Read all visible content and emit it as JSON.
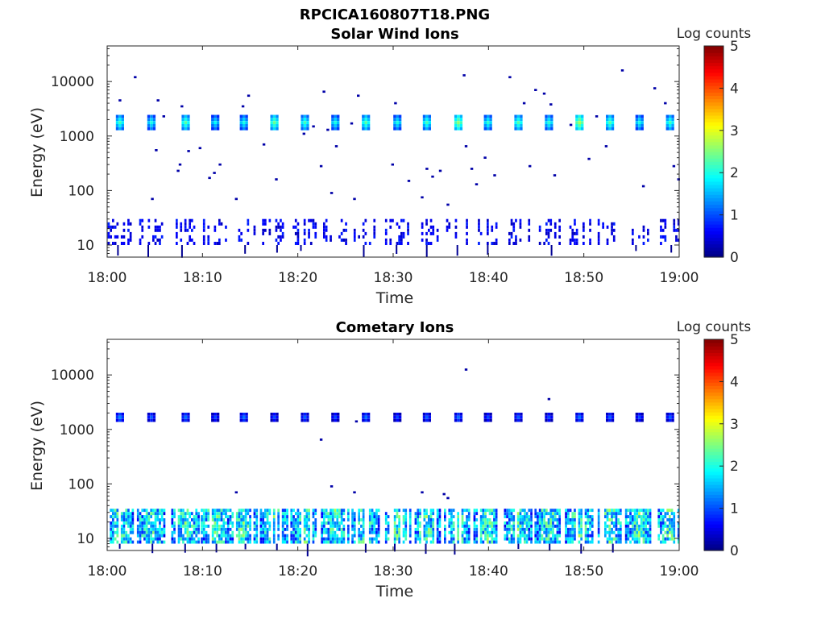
{
  "figure": {
    "title": "RPCICA160807T18.PNG"
  },
  "colormap": {
    "name": "jet",
    "stops": [
      "#00007f",
      "#0000ff",
      "#007fff",
      "#00ffff",
      "#7fff7f",
      "#ffff00",
      "#ff7f00",
      "#ff0000",
      "#7f0000"
    ]
  },
  "chart_data": [
    {
      "type": "heatmap",
      "title": "Solar Wind Ions",
      "xlabel": "Time",
      "ylabel": "Energy (eV)",
      "x_ticks": [
        "18:00",
        "18:10",
        "18:20",
        "18:30",
        "18:40",
        "18:50",
        "19:00"
      ],
      "x_range_minutes": [
        0,
        60
      ],
      "y_scale": "log",
      "y_ticks": [
        {
          "value": 10,
          "label": "10"
        },
        {
          "value": 100,
          "label": "100"
        },
        {
          "value": 1000,
          "label": "1000"
        },
        {
          "value": 10000,
          "label": "10000"
        }
      ],
      "y_range": [
        6,
        45000
      ],
      "colorbar": {
        "label": "Log counts",
        "range": [
          0,
          5
        ],
        "ticks": [
          "0",
          "1",
          "2",
          "3",
          "4",
          "5"
        ]
      },
      "pulse_times_min": [
        1.2,
        4.5,
        8.1,
        11.2,
        14.2,
        17.4,
        20.6,
        23.8,
        27.0,
        30.3,
        33.4,
        36.7,
        39.8,
        43.0,
        46.2,
        49.4,
        52.6,
        55.7,
        58.9
      ],
      "cells_ion_peak": [
        {
          "t_min": 1.2,
          "energy_ev": 1800,
          "log_counts": 2.2
        },
        {
          "t_min": 4.5,
          "energy_ev": 1800,
          "log_counts": 2.0
        },
        {
          "t_min": 8.1,
          "energy_ev": 1800,
          "log_counts": 2.3
        },
        {
          "t_min": 11.2,
          "energy_ev": 1800,
          "log_counts": 1.9
        },
        {
          "t_min": 14.2,
          "energy_ev": 1800,
          "log_counts": 2.0
        },
        {
          "t_min": 17.4,
          "energy_ev": 1800,
          "log_counts": 2.4
        },
        {
          "t_min": 20.6,
          "energy_ev": 1800,
          "log_counts": 2.2
        },
        {
          "t_min": 23.8,
          "energy_ev": 1800,
          "log_counts": 2.0
        },
        {
          "t_min": 27.0,
          "energy_ev": 1800,
          "log_counts": 2.3
        },
        {
          "t_min": 30.3,
          "energy_ev": 1800,
          "log_counts": 2.0
        },
        {
          "t_min": 33.4,
          "energy_ev": 1800,
          "log_counts": 2.2
        },
        {
          "t_min": 36.7,
          "energy_ev": 1800,
          "log_counts": 2.6
        },
        {
          "t_min": 39.8,
          "energy_ev": 1800,
          "log_counts": 2.1
        },
        {
          "t_min": 43.0,
          "energy_ev": 1800,
          "log_counts": 2.3
        },
        {
          "t_min": 46.2,
          "energy_ev": 1800,
          "log_counts": 2.1
        },
        {
          "t_min": 49.4,
          "energy_ev": 1800,
          "log_counts": 2.7
        },
        {
          "t_min": 52.6,
          "energy_ev": 1800,
          "log_counts": 2.3
        },
        {
          "t_min": 55.7,
          "energy_ev": 1800,
          "log_counts": 2.0
        },
        {
          "t_min": 58.9,
          "energy_ev": 1800,
          "log_counts": 2.2
        }
      ],
      "scatter_points": [
        {
          "t_min": 1.2,
          "energy_ev": 4500
        },
        {
          "t_min": 2.8,
          "energy_ev": 12000
        },
        {
          "t_min": 4.6,
          "energy_ev": 70
        },
        {
          "t_min": 5.2,
          "energy_ev": 4500
        },
        {
          "t_min": 5.0,
          "energy_ev": 550
        },
        {
          "t_min": 5.8,
          "energy_ev": 2300
        },
        {
          "t_min": 7.3,
          "energy_ev": 230
        },
        {
          "t_min": 7.5,
          "energy_ev": 300
        },
        {
          "t_min": 7.7,
          "energy_ev": 3500
        },
        {
          "t_min": 8.4,
          "energy_ev": 530
        },
        {
          "t_min": 9.6,
          "energy_ev": 600
        },
        {
          "t_min": 10.6,
          "energy_ev": 170
        },
        {
          "t_min": 11.1,
          "energy_ev": 210
        },
        {
          "t_min": 11.7,
          "energy_ev": 300
        },
        {
          "t_min": 13.4,
          "energy_ev": 70
        },
        {
          "t_min": 14.1,
          "energy_ev": 3500
        },
        {
          "t_min": 14.7,
          "energy_ev": 5500
        },
        {
          "t_min": 16.3,
          "energy_ev": 700
        },
        {
          "t_min": 17.6,
          "energy_ev": 160
        },
        {
          "t_min": 20.5,
          "energy_ev": 1100
        },
        {
          "t_min": 21.5,
          "energy_ev": 1500
        },
        {
          "t_min": 22.3,
          "energy_ev": 280
        },
        {
          "t_min": 22.6,
          "energy_ev": 6500
        },
        {
          "t_min": 23.0,
          "energy_ev": 1300
        },
        {
          "t_min": 23.4,
          "energy_ev": 90
        },
        {
          "t_min": 23.9,
          "energy_ev": 650
        },
        {
          "t_min": 25.5,
          "energy_ev": 1700
        },
        {
          "t_min": 25.8,
          "energy_ev": 70
        },
        {
          "t_min": 26.2,
          "energy_ev": 5500
        },
        {
          "t_min": 29.8,
          "energy_ev": 300
        },
        {
          "t_min": 30.1,
          "energy_ev": 4000
        },
        {
          "t_min": 31.5,
          "energy_ev": 150
        },
        {
          "t_min": 32.9,
          "energy_ev": 75
        },
        {
          "t_min": 33.4,
          "energy_ev": 250
        },
        {
          "t_min": 34.0,
          "energy_ev": 180
        },
        {
          "t_min": 34.8,
          "energy_ev": 230
        },
        {
          "t_min": 35.6,
          "energy_ev": 55
        },
        {
          "t_min": 37.3,
          "energy_ev": 13000
        },
        {
          "t_min": 37.5,
          "energy_ev": 650
        },
        {
          "t_min": 38.1,
          "energy_ev": 250
        },
        {
          "t_min": 38.6,
          "energy_ev": 130
        },
        {
          "t_min": 39.5,
          "energy_ev": 400
        },
        {
          "t_min": 40.5,
          "energy_ev": 190
        },
        {
          "t_min": 42.1,
          "energy_ev": 12000
        },
        {
          "t_min": 43.6,
          "energy_ev": 4000
        },
        {
          "t_min": 44.2,
          "energy_ev": 280
        },
        {
          "t_min": 44.8,
          "energy_ev": 7000
        },
        {
          "t_min": 45.7,
          "energy_ev": 6000
        },
        {
          "t_min": 46.4,
          "energy_ev": 3800
        },
        {
          "t_min": 46.8,
          "energy_ev": 190
        },
        {
          "t_min": 48.5,
          "energy_ev": 1600
        },
        {
          "t_min": 50.4,
          "energy_ev": 380
        },
        {
          "t_min": 51.2,
          "energy_ev": 2300
        },
        {
          "t_min": 52.2,
          "energy_ev": 650
        },
        {
          "t_min": 53.9,
          "energy_ev": 16000
        },
        {
          "t_min": 56.1,
          "energy_ev": 120
        },
        {
          "t_min": 57.3,
          "energy_ev": 7500
        },
        {
          "t_min": 58.4,
          "energy_ev": 4000
        },
        {
          "t_min": 59.3,
          "energy_ev": 280
        },
        {
          "t_min": 59.8,
          "energy_ev": 160
        }
      ],
      "low_energy_band": {
        "energy_range_ev": [
          10,
          30
        ],
        "log_counts": 0.3
      }
    },
    {
      "type": "heatmap",
      "title": "Cometary Ions",
      "xlabel": "Time",
      "ylabel": "Energy (eV)",
      "x_ticks": [
        "18:00",
        "18:10",
        "18:20",
        "18:30",
        "18:40",
        "18:50",
        "19:00"
      ],
      "x_range_minutes": [
        0,
        60
      ],
      "y_scale": "log",
      "y_ticks": [
        {
          "value": 10,
          "label": "10"
        },
        {
          "value": 100,
          "label": "100"
        },
        {
          "value": 1000,
          "label": "1000"
        },
        {
          "value": 10000,
          "label": "10000"
        }
      ],
      "y_range": [
        6,
        45000
      ],
      "colorbar": {
        "label": "Log counts",
        "range": [
          0,
          5
        ],
        "ticks": [
          "0",
          "1",
          "2",
          "3",
          "4",
          "5"
        ]
      },
      "pulse_times_min": [
        1.2,
        4.5,
        8.1,
        11.2,
        14.2,
        17.4,
        20.6,
        23.8,
        27.0,
        30.3,
        33.4,
        36.7,
        39.8,
        43.0,
        46.2,
        49.4,
        52.6,
        55.7,
        58.9
      ],
      "cells_ion_peak": [
        {
          "t_min": 1.2,
          "energy_ev": 1700,
          "log_counts": 1.3
        },
        {
          "t_min": 4.5,
          "energy_ev": 1700,
          "log_counts": 1.1
        },
        {
          "t_min": 8.1,
          "energy_ev": 1700,
          "log_counts": 1.2
        },
        {
          "t_min": 11.2,
          "energy_ev": 1700,
          "log_counts": 1.0
        },
        {
          "t_min": 14.2,
          "energy_ev": 1700,
          "log_counts": 1.2
        },
        {
          "t_min": 17.4,
          "energy_ev": 1700,
          "log_counts": 1.0
        },
        {
          "t_min": 20.6,
          "energy_ev": 1700,
          "log_counts": 1.1
        },
        {
          "t_min": 23.8,
          "energy_ev": 1700,
          "log_counts": 1.0
        },
        {
          "t_min": 27.0,
          "energy_ev": 1700,
          "log_counts": 1.2
        },
        {
          "t_min": 30.3,
          "energy_ev": 1700,
          "log_counts": 1.0
        },
        {
          "t_min": 33.4,
          "energy_ev": 1700,
          "log_counts": 1.1
        },
        {
          "t_min": 36.7,
          "energy_ev": 1700,
          "log_counts": 1.2
        },
        {
          "t_min": 39.8,
          "energy_ev": 1700,
          "log_counts": 1.0
        },
        {
          "t_min": 43.0,
          "energy_ev": 1700,
          "log_counts": 1.1
        },
        {
          "t_min": 46.2,
          "energy_ev": 1700,
          "log_counts": 1.0
        },
        {
          "t_min": 49.4,
          "energy_ev": 1700,
          "log_counts": 1.2
        },
        {
          "t_min": 52.6,
          "energy_ev": 1700,
          "log_counts": 1.1
        },
        {
          "t_min": 55.7,
          "energy_ev": 1700,
          "log_counts": 1.0
        },
        {
          "t_min": 58.9,
          "energy_ev": 1700,
          "log_counts": 1.1
        }
      ],
      "scatter_points": [
        {
          "t_min": 13.4,
          "energy_ev": 70
        },
        {
          "t_min": 22.3,
          "energy_ev": 650
        },
        {
          "t_min": 23.4,
          "energy_ev": 90
        },
        {
          "t_min": 25.8,
          "energy_ev": 70
        },
        {
          "t_min": 26.0,
          "energy_ev": 1400
        },
        {
          "t_min": 32.9,
          "energy_ev": 70
        },
        {
          "t_min": 35.2,
          "energy_ev": 65
        },
        {
          "t_min": 35.6,
          "energy_ev": 55
        },
        {
          "t_min": 37.5,
          "energy_ev": 12500
        },
        {
          "t_min": 46.2,
          "energy_ev": 3600
        }
      ],
      "low_energy_band": {
        "energy_range_ev": [
          8,
          35
        ],
        "log_counts": 2.0
      }
    }
  ]
}
